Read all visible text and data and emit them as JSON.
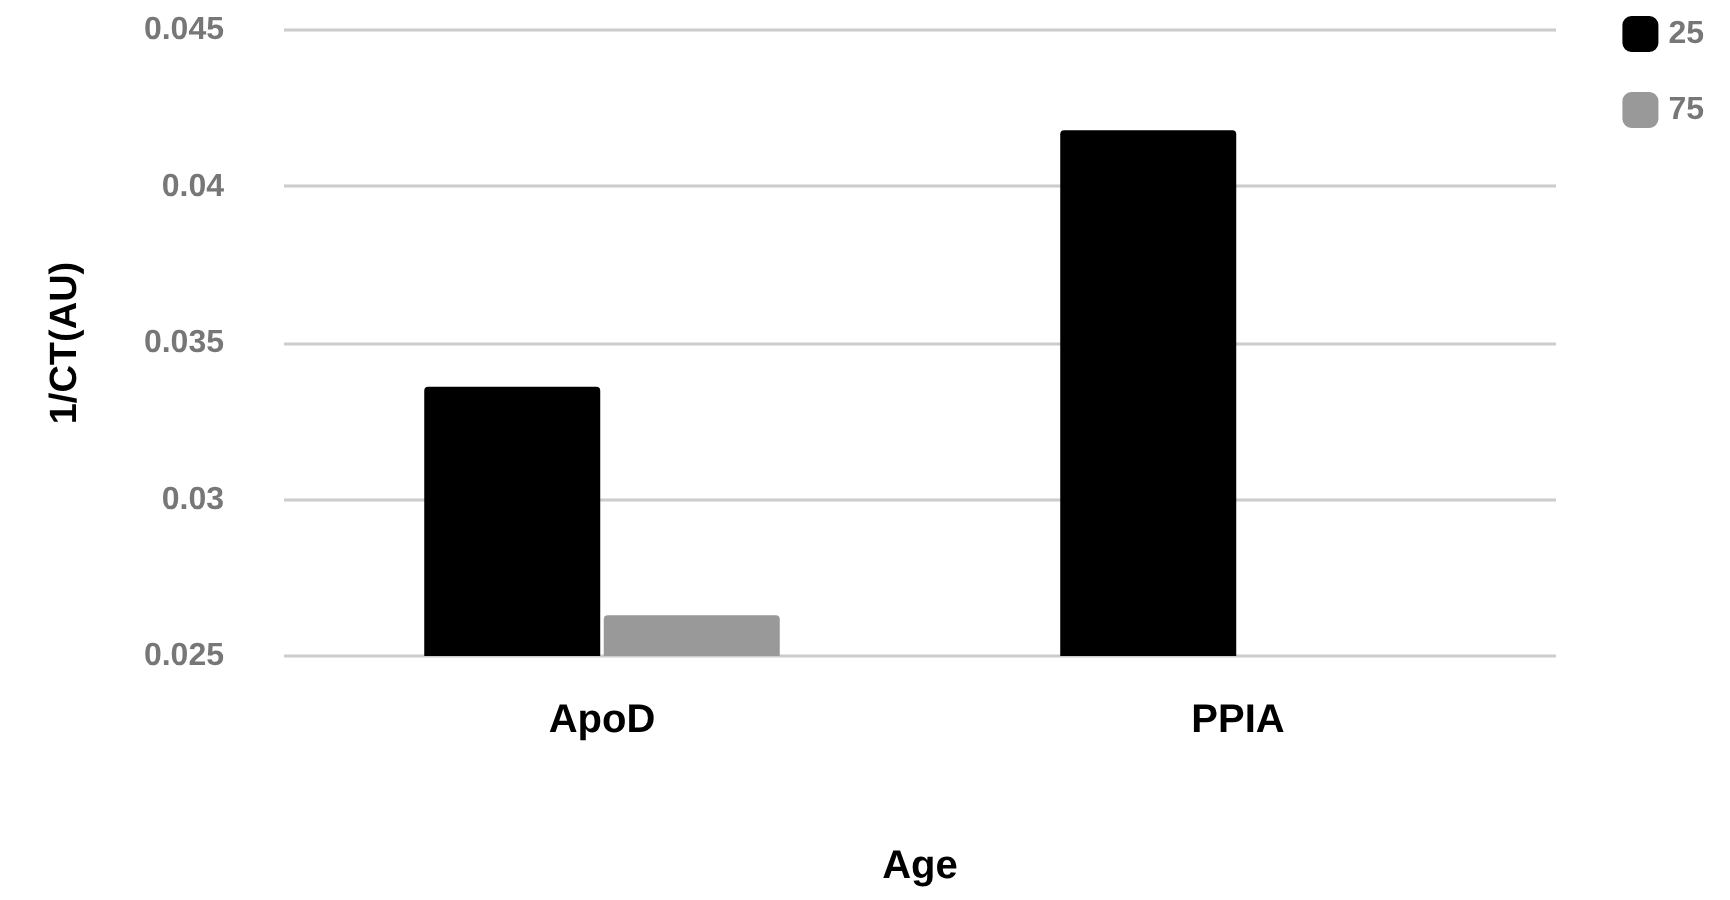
{
  "chart_data": {
    "type": "bar",
    "xlabel": "Age",
    "ylabel": "1/CT(AU)",
    "categories": [
      "ApoD",
      "PPIA"
    ],
    "series": [
      {
        "name": "25",
        "color": "#000000",
        "values": [
          0.0336,
          0.0418
        ]
      },
      {
        "name": "75",
        "color": "#999999",
        "values": [
          0.0263,
          null
        ]
      }
    ],
    "ylim": [
      0.025,
      0.045
    ],
    "yticks": [
      0.025,
      0.03,
      0.035,
      0.04,
      0.045
    ],
    "grid": "y",
    "legend": "top right"
  }
}
